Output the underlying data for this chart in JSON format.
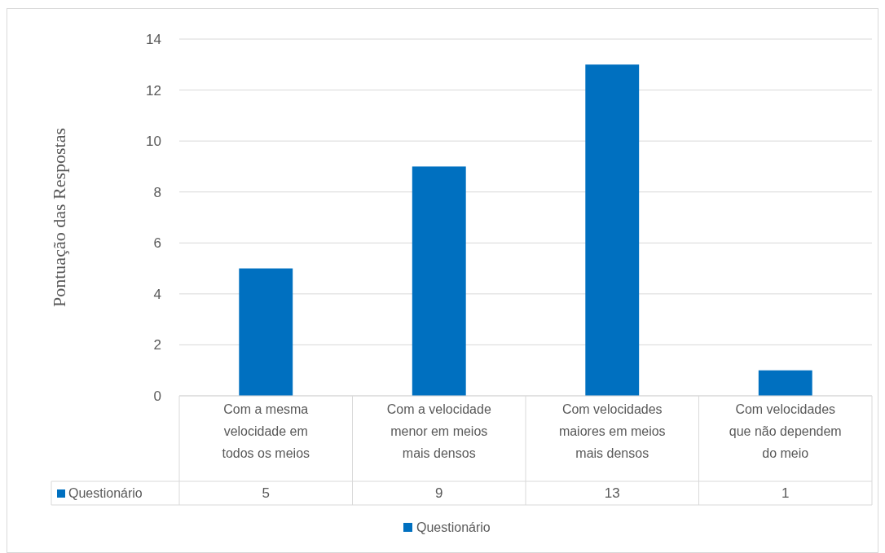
{
  "chart_data": {
    "type": "bar",
    "ylabel": "Pontuação das Respostas",
    "categories": [
      "Com a mesma velocidade em todos os meios",
      "Com a velocidade menor em meios mais densos",
      "Com velocidades maiores em meios mais densos",
      "Com velocidades que não dependem do meio"
    ],
    "series": [
      {
        "name": "Questionário",
        "color": "#0070c0",
        "values": [
          5,
          9,
          13,
          1
        ]
      }
    ],
    "ylim": [
      0,
      14
    ],
    "yticks": [
      0,
      2,
      4,
      6,
      8,
      10,
      12,
      14
    ],
    "grid": "y",
    "data_labels": true,
    "legend": "bottom"
  }
}
